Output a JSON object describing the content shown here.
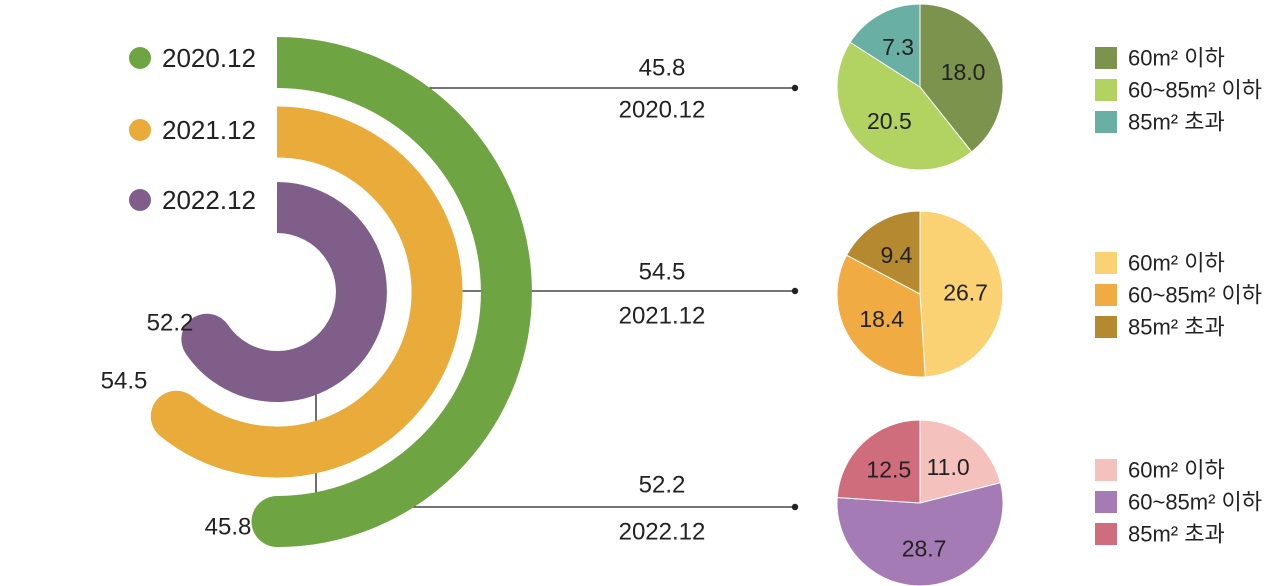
{
  "chart_data": [
    {
      "type": "radial-bar",
      "legend": [
        {
          "label": "2020.12",
          "color": "#6fa442"
        },
        {
          "label": "2021.12",
          "color": "#e9ab39"
        },
        {
          "label": "2022.12",
          "color": "#7f5f8a"
        }
      ],
      "series": [
        {
          "name": "2020.12",
          "value": 45.8,
          "value_label": "45.8",
          "color": "#6fa442"
        },
        {
          "name": "2021.12",
          "value": 54.5,
          "value_label": "54.5",
          "color": "#e9ab39"
        },
        {
          "name": "2022.12",
          "value": 52.2,
          "value_label": "52.2",
          "color": "#7f5f8a"
        }
      ],
      "callouts": [
        {
          "value": "45.8",
          "label": "2020.12"
        },
        {
          "value": "54.5",
          "label": "2021.12"
        },
        {
          "value": "52.2",
          "label": "2022.12"
        }
      ]
    },
    {
      "type": "pie",
      "name": "2020.12",
      "slices": [
        {
          "label": "60m² 이하",
          "value": 18.0,
          "value_label": "18.0",
          "color": "#7b934c"
        },
        {
          "label": "60~85m² 이하",
          "value": 20.5,
          "value_label": "20.5",
          "color": "#b2d262"
        },
        {
          "label": "85m² 초과",
          "value": 7.3,
          "value_label": "7.3",
          "color": "#6aafa4"
        }
      ]
    },
    {
      "type": "pie",
      "name": "2021.12",
      "slices": [
        {
          "label": "60m² 이하",
          "value": 26.7,
          "value_label": "26.7",
          "color": "#fad274"
        },
        {
          "label": "60~85m² 이하",
          "value": 18.4,
          "value_label": "18.4",
          "color": "#f0ac42"
        },
        {
          "label": "85m² 초과",
          "value": 9.4,
          "value_label": "9.4",
          "color": "#b5892f"
        }
      ]
    },
    {
      "type": "pie",
      "name": "2022.12",
      "slices": [
        {
          "label": "60m² 이하",
          "value": 11.0,
          "value_label": "11.0",
          "color": "#f5c1bd"
        },
        {
          "label": "60~85m² 이하",
          "value": 28.7,
          "value_label": "28.7",
          "color": "#a57bb6"
        },
        {
          "label": "85m² 초과",
          "value": 12.5,
          "value_label": "12.5",
          "color": "#cf6d7c"
        }
      ]
    }
  ]
}
